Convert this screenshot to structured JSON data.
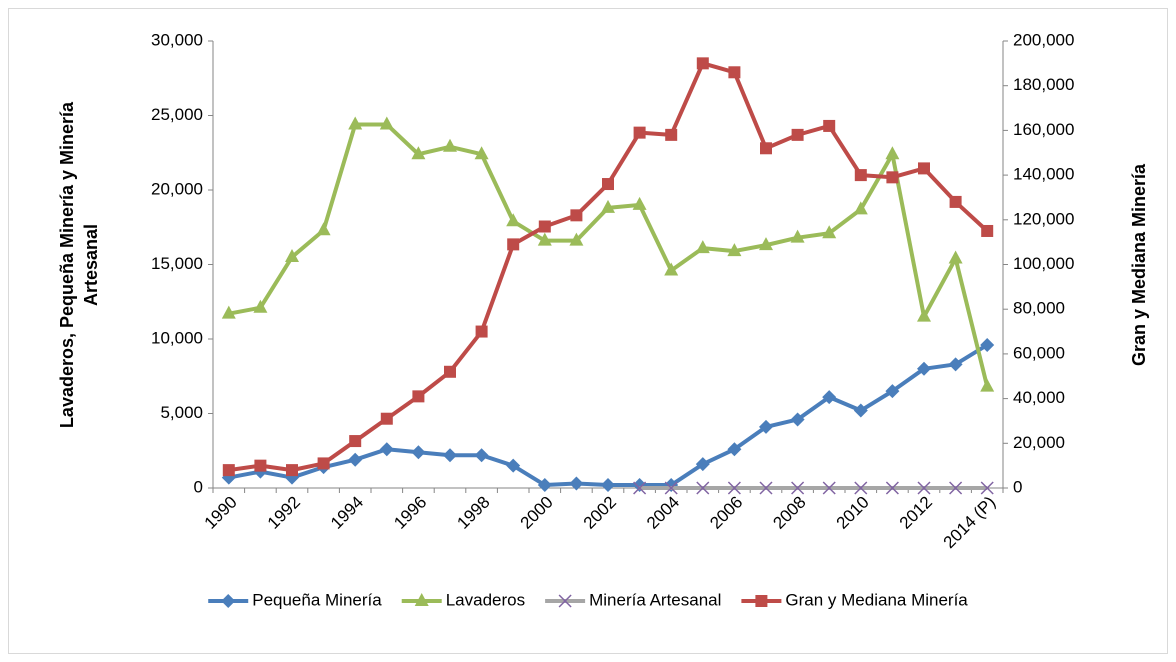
{
  "chart_data": {
    "type": "line",
    "ylabel": "Lavaderos, Pequeña Minería y Minería Artesanal",
    "y2label": "Gran y Mediana Minería",
    "categories": [
      "1990",
      null,
      "1992",
      null,
      "1994",
      null,
      "1996",
      null,
      "1998",
      null,
      "2000",
      null,
      "2002",
      null,
      "2004",
      null,
      "2006",
      null,
      "2008",
      null,
      "2010",
      null,
      "2012",
      null,
      "2014 (P)"
    ],
    "ylim": [
      0,
      30000
    ],
    "yticks": [
      0,
      {
        "value": 5000,
        "label": "5,000"
      },
      {
        "value": 10000,
        "label": "10,000"
      },
      {
        "value": 15000,
        "label": "15,000"
      },
      {
        "value": 20000,
        "label": "20,000"
      },
      {
        "value": 25000,
        "label": "25,000"
      },
      {
        "value": 30000,
        "label": "30,000"
      }
    ],
    "y2lim": [
      0,
      200000
    ],
    "y2ticks": [
      0,
      {
        "value": 20000,
        "label": "20,000"
      },
      {
        "value": 40000,
        "label": "40,000"
      },
      {
        "value": 60000,
        "label": "60,000"
      },
      {
        "value": 80000,
        "label": "80,000"
      },
      {
        "value": 100000,
        "label": "100,000"
      },
      {
        "value": 120000,
        "label": "120,000"
      },
      {
        "value": 140000,
        "label": "140,000"
      },
      {
        "value": 160000,
        "label": "160,000"
      },
      {
        "value": 180000,
        "label": "180,000"
      },
      {
        "value": 200000,
        "label": "200,000"
      }
    ],
    "legend": "bottom",
    "series": [
      {
        "name": "Pequeña Minería",
        "color": "#4a7ebb",
        "marker": "diamond",
        "values": [
          700,
          1100,
          700,
          1400,
          1900,
          2600,
          2400,
          2200,
          2200,
          1500,
          200,
          300,
          200,
          200,
          200,
          1600,
          2600,
          4100,
          4600,
          6100,
          5200,
          6500,
          8000,
          8300,
          9600
        ]
      },
      {
        "name": "Lavaderos",
        "color": "#9bbb59",
        "marker": "triangle",
        "values": [
          11700,
          12100,
          15500,
          17300,
          24400,
          24400,
          22400,
          22900,
          22400,
          17900,
          16600,
          16600,
          18800,
          19000,
          14600,
          16100,
          15900,
          16300,
          16800,
          17100,
          18700,
          22400,
          11500,
          15400,
          6800
        ]
      },
      {
        "name": "Minería Artesanal",
        "color": "#a6a6a6",
        "marker_color": "#8064a2",
        "marker": "x",
        "values": [
          null,
          null,
          null,
          null,
          null,
          null,
          null,
          null,
          null,
          null,
          null,
          null,
          null,
          0,
          0,
          0,
          0,
          0,
          0,
          0,
          0,
          0,
          0,
          0,
          0
        ]
      },
      {
        "name": "Gran y Mediana Minería",
        "color": "#be4b48",
        "marker": "square",
        "axis": "y2",
        "values": [
          8000,
          10000,
          8000,
          11000,
          21000,
          31000,
          41000,
          52000,
          70000,
          109000,
          117000,
          122000,
          136000,
          159000,
          158000,
          190000,
          186000,
          152000,
          158000,
          162000,
          140000,
          139000,
          143000,
          128000,
          115000
        ]
      }
    ]
  }
}
